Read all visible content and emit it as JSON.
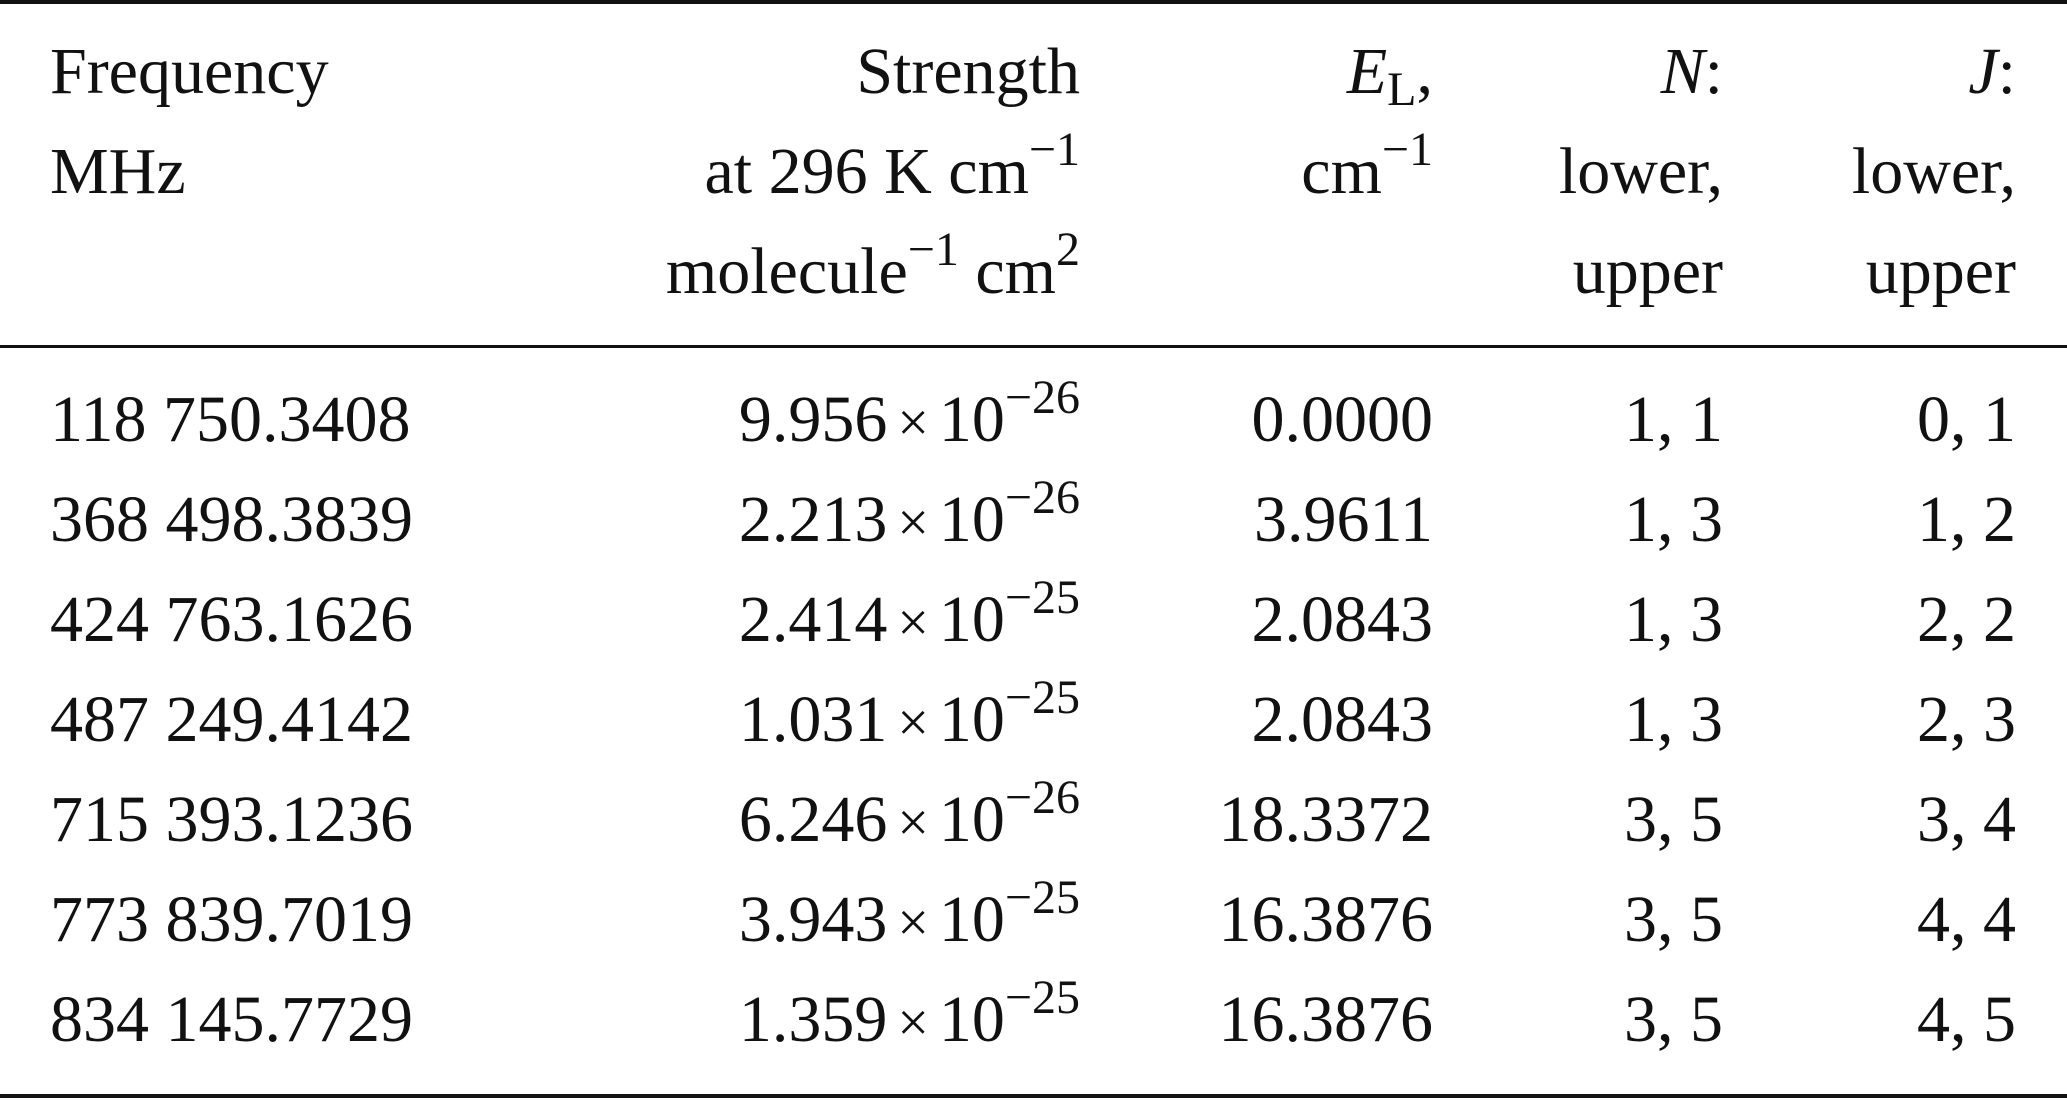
{
  "header": {
    "frequency": [
      "Frequency",
      "MHz"
    ],
    "strength": {
      "line1": "Strength",
      "line2_prefix": "at 296 K cm",
      "line2_exp": "−1",
      "line3_prefix": "molecule",
      "line3_exp": "−1",
      "line3_unit": " cm",
      "line3_unit_exp": "2"
    },
    "el": {
      "symbol": "E",
      "subscript": "L",
      "suffix": ",",
      "line2_prefix": "cm",
      "line2_exp": "−1"
    },
    "n": {
      "symbol": "N",
      "suffix": ":",
      "line2": "lower,",
      "line3": "upper"
    },
    "j": {
      "symbol": "J",
      "suffix": ":",
      "line2": "lower,",
      "line3": "upper"
    }
  },
  "rows": [
    {
      "frequency": "118 750.3408",
      "mant": "9.956",
      "exp": "−26",
      "el": "0.0000",
      "n": "1, 1",
      "j": "0, 1"
    },
    {
      "frequency": "368 498.3839",
      "mant": "2.213",
      "exp": "−26",
      "el": "3.9611",
      "n": "1, 3",
      "j": "1, 2"
    },
    {
      "frequency": "424 763.1626",
      "mant": "2.414",
      "exp": "−25",
      "el": "2.0843",
      "n": "1, 3",
      "j": "2, 2"
    },
    {
      "frequency": "487 249.4142",
      "mant": "1.031",
      "exp": "−25",
      "el": "2.0843",
      "n": "1, 3",
      "j": "2, 3"
    },
    {
      "frequency": "715 393.1236",
      "mant": "6.246",
      "exp": "−26",
      "el": "18.3372",
      "n": "3, 5",
      "j": "3, 4"
    },
    {
      "frequency": "773 839.7019",
      "mant": "3.943",
      "exp": "−25",
      "el": "16.3876",
      "n": "3, 5",
      "j": "4, 4"
    },
    {
      "frequency": "834 145.7729",
      "mant": "1.359",
      "exp": "−25",
      "el": "16.3876",
      "n": "3, 5",
      "j": "4, 5"
    }
  ],
  "times_symbol": "×",
  "base": "10"
}
